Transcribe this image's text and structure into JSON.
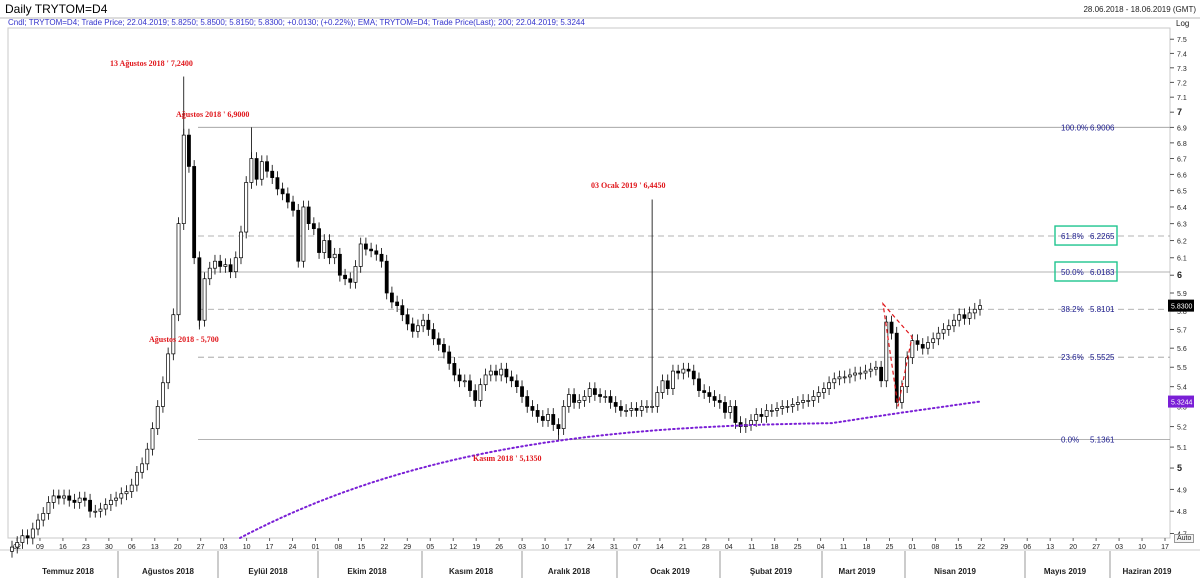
{
  "header": {
    "title": "Daily TRYTOM=D4",
    "date_range": "28.06.2018 - 18.06.2019 (GMT)"
  },
  "legend": {
    "candle_text": "Cndl; TRYTOM=D4; Trade Price; 22.04.2019; 5.8250; 5.8500; 5.8150; 5.8300; +0.0130; (+0.22%);",
    "ema_text": "EMA; TRYTOM=D4; Trade Price(Last); 200; 22.04.2019; 5.3244"
  },
  "axis": {
    "log_label": "Log",
    "auto_label": "Auto",
    "last_price_label": "5.8300",
    "ema_value_label": "5.3244"
  },
  "colors": {
    "annotation_red": "#e0161b",
    "fib_blue": "#1a1a8c",
    "ema_purple": "#7a1fd6",
    "fib_box_green": "#1fc48f",
    "candle_up": "#ffffff",
    "candle_down": "#000000"
  },
  "chart_data": {
    "type": "candlestick",
    "scale": "log",
    "ylim": [
      4.68,
      7.58
    ],
    "yticks": [
      4.7,
      4.8,
      4.9,
      5,
      5.1,
      5.2,
      5.3,
      5.4,
      5.5,
      5.6,
      5.7,
      5.8,
      5.9,
      6,
      6.1,
      6.2,
      6.3,
      6.4,
      6.5,
      6.6,
      6.7,
      6.8,
      6.9,
      7,
      7.1,
      7.2,
      7.3,
      7.4,
      7.5
    ],
    "ytick_labels": [
      "4.7",
      "4.8",
      "4.9",
      "5",
      "5.1",
      "5.2",
      "5.3",
      "5.4",
      "5.5",
      "5.6",
      "5.7",
      "5.8",
      "5.9",
      "6",
      "6.1",
      "6.2",
      "6.3",
      "6.4",
      "6.5",
      "6.6",
      "6.7",
      "6.8",
      "6.9",
      "7",
      "7.1",
      "7.2",
      "7.3",
      "7.4",
      "7.5"
    ],
    "major_yticks": [
      5,
      6,
      7
    ],
    "x_day_labels": [
      "02",
      "09",
      "16",
      "23",
      "30",
      "06",
      "13",
      "20",
      "27",
      "03",
      "10",
      "17",
      "24",
      "01",
      "08",
      "15",
      "22",
      "29",
      "05",
      "12",
      "19",
      "26",
      "03",
      "10",
      "17",
      "24",
      "31",
      "07",
      "14",
      "21",
      "28",
      "04",
      "11",
      "18",
      "25",
      "04",
      "11",
      "18",
      "25",
      "01",
      "08",
      "15",
      "22",
      "29",
      "06",
      "13",
      "20",
      "27",
      "03",
      "10",
      "17"
    ],
    "x_month_labels": [
      "Temmuz 2018",
      "Ağustos 2018",
      "Eylül 2018",
      "Ekim 2018",
      "Kasım 2018",
      "Aralık 2018",
      "Ocak 2019",
      "Şubat 2019",
      "Mart 2019",
      "Nisan 2019",
      "Mayıs 2019",
      "Haziran 2019"
    ],
    "closes": [
      4.64,
      4.66,
      4.69,
      4.68,
      4.72,
      4.76,
      4.79,
      4.84,
      4.87,
      4.86,
      4.87,
      4.85,
      4.84,
      4.86,
      4.85,
      4.8,
      4.8,
      4.81,
      4.83,
      4.85,
      4.86,
      4.88,
      4.89,
      4.92,
      4.98,
      5.02,
      5.09,
      5.19,
      5.3,
      5.42,
      5.57,
      5.78,
      6.3,
      6.85,
      6.65,
      6.1,
      5.75,
      5.98,
      6.04,
      6.08,
      6.05,
      6.06,
      6.02,
      6.1,
      6.25,
      6.55,
      6.7,
      6.57,
      6.68,
      6.62,
      6.58,
      6.51,
      6.48,
      6.43,
      6.38,
      6.08,
      6.4,
      6.3,
      6.27,
      6.13,
      6.2,
      6.1,
      6.12,
      6.0,
      5.98,
      5.96,
      6.05,
      6.18,
      6.15,
      6.14,
      6.12,
      6.08,
      5.9,
      5.85,
      5.83,
      5.78,
      5.73,
      5.69,
      5.72,
      5.75,
      5.7,
      5.65,
      5.62,
      5.58,
      5.52,
      5.46,
      5.43,
      5.43,
      5.38,
      5.33,
      5.41,
      5.46,
      5.48,
      5.46,
      5.49,
      5.45,
      5.43,
      5.4,
      5.35,
      5.3,
      5.28,
      5.25,
      5.23,
      5.26,
      5.21,
      5.19,
      5.3,
      5.36,
      5.32,
      5.33,
      5.35,
      5.39,
      5.36,
      5.35,
      5.35,
      5.32,
      5.3,
      5.28,
      5.28,
      5.29,
      5.28,
      5.3,
      5.3,
      5.3,
      5.37,
      5.43,
      5.39,
      5.48,
      5.47,
      5.49,
      5.48,
      5.44,
      5.38,
      5.37,
      5.35,
      5.33,
      5.32,
      5.27,
      5.3,
      5.22,
      5.2,
      5.21,
      5.23,
      5.26,
      5.25,
      5.28,
      5.28,
      5.29,
      5.3,
      5.3,
      5.31,
      5.32,
      5.33,
      5.33,
      5.35,
      5.37,
      5.39,
      5.42,
      5.44,
      5.45,
      5.45,
      5.46,
      5.47,
      5.47,
      5.48,
      5.49,
      5.5,
      5.43,
      5.74,
      5.68,
      5.32,
      5.4,
      5.55,
      5.64,
      5.62,
      5.6,
      5.63,
      5.65,
      5.68,
      5.7,
      5.72,
      5.75,
      5.78,
      5.76,
      5.79,
      5.81,
      5.83
    ],
    "ema200_start_x": 240,
    "ema200_end": 5.3244,
    "annotations": [
      {
        "text": "13 Ağustos 2018 ' 7,2400",
        "price": 7.24
      },
      {
        "text": "Ağustos 2018 ' 6,9000",
        "price": 6.9
      },
      {
        "text": "Ağustos 2018 - 5,700",
        "price": 5.7
      },
      {
        "text": "03 Ocak 2019 ' 6,4450",
        "price": 6.445
      },
      {
        "text": "Kasım 2018 ' 5,1350",
        "price": 5.135
      }
    ],
    "fib_levels": [
      {
        "pct": "100.0%",
        "value": "6.9006",
        "price": 6.9006,
        "boxed": false
      },
      {
        "pct": "61.8%",
        "value": "6.2265",
        "price": 6.2265,
        "boxed": true
      },
      {
        "pct": "50.0%",
        "value": "6.0183",
        "price": 6.0183,
        "boxed": true
      },
      {
        "pct": "38.2%",
        "value": "5.8101",
        "price": 5.8101,
        "boxed": false
      },
      {
        "pct": "23.6%",
        "value": "5.5525",
        "price": 5.5525,
        "boxed": false
      },
      {
        "pct": "0.0%",
        "value": "5.1361",
        "price": 5.1361,
        "boxed": false
      }
    ]
  }
}
